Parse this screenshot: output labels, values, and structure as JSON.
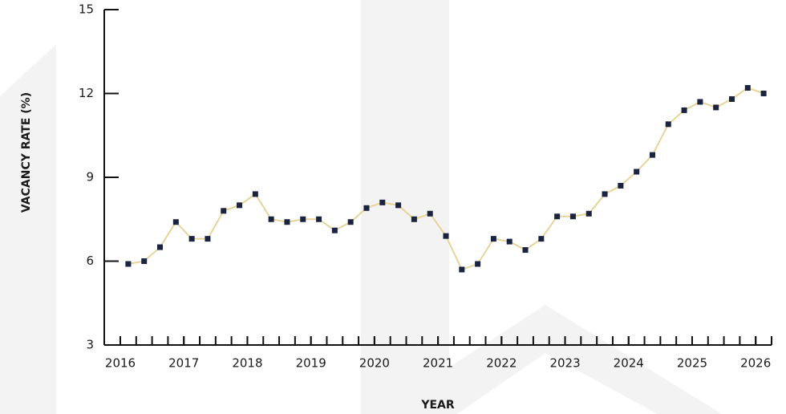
{
  "chart_data": {
    "type": "line",
    "ylabel": "VACANCY RATE (%)",
    "xlabel": "YEAR",
    "x": [
      2016.125,
      2016.375,
      2016.625,
      2016.875,
      2017.125,
      2017.375,
      2017.625,
      2017.875,
      2018.125,
      2018.375,
      2018.625,
      2018.875,
      2019.125,
      2019.375,
      2019.625,
      2019.875,
      2020.125,
      2020.375,
      2020.625,
      2020.875,
      2021.125,
      2021.375,
      2021.625,
      2021.875,
      2022.125,
      2022.375,
      2022.625,
      2022.875,
      2023.125,
      2023.375,
      2023.625,
      2023.875,
      2024.125,
      2024.375,
      2024.625,
      2024.875,
      2025.125,
      2025.375,
      2025.625,
      2025.875,
      2026.125
    ],
    "series": [
      {
        "color": "#e8d49a",
        "marker_color": "#1a2340",
        "values": [
          5.9,
          6.0,
          6.5,
          7.4,
          6.8,
          6.8,
          7.8,
          8.0,
          8.4,
          7.5,
          7.4,
          7.5,
          7.5,
          7.1,
          7.4,
          7.9,
          8.1,
          8.0,
          7.5,
          7.7,
          6.9,
          5.7,
          5.9,
          6.8,
          6.7,
          6.4,
          6.8,
          7.6,
          7.6,
          7.7,
          8.4,
          8.7,
          9.2,
          9.8,
          10.9,
          11.4,
          11.7,
          11.5,
          11.8,
          12.2,
          12.0
        ]
      }
    ],
    "xlim": [
      2016,
      2026.25
    ],
    "xticks": [
      2016,
      2017,
      2018,
      2019,
      2020,
      2021,
      2022,
      2023,
      2024,
      2025,
      2026
    ],
    "ylim": [
      3,
      15
    ],
    "yticks": [
      3,
      6,
      9,
      12,
      15
    ]
  }
}
